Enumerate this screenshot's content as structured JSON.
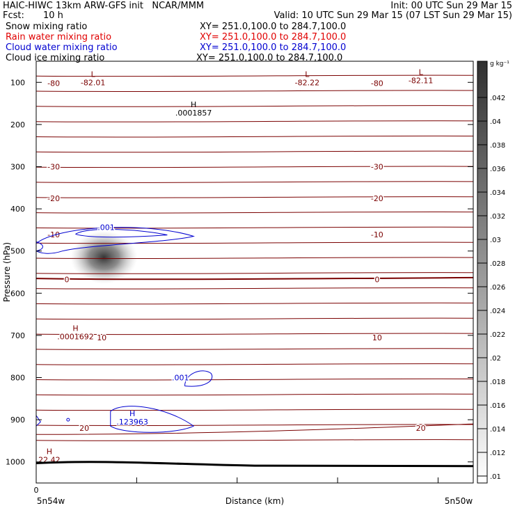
{
  "header": {
    "title_left": "HAIC-HIWC 13km ARW-GFS init   NCAR/MMM",
    "title_right": "Init: 00 UTC Sun 29 Mar 15",
    "fcst_label": "Fcst:",
    "fcst_value": "10 h",
    "valid": "Valid: 10 UTC Sun 29 Mar 15 (07 LST Sun 29 Mar 15)"
  },
  "fields": [
    {
      "name": "Snow mixing ratio",
      "xy": "XY= 251.0,100.0 to 284.7,100.0",
      "color": "#000000"
    },
    {
      "name": "Rain water mixing ratio",
      "xy": "XY= 251.0,100.0 to 284.7,100.0",
      "color": "#e00000"
    },
    {
      "name": "Cloud water mixing ratio",
      "xy": "XY= 251.0,100.0 to 284.7,100.0",
      "color": "#0000d0"
    },
    {
      "name": "Cloud ice mixing ratio",
      "xy": "XY= 251.0,100.0 to 284.7,100.0",
      "color": "#000000"
    }
  ],
  "chart_data": {
    "type": "cross-section",
    "xlabel": "Distance (km)",
    "ylabel": "Pressure (hPa)",
    "x_start_label": "5n54w",
    "x_end_label": "5n50w",
    "x_origin_tick": "0",
    "ylim": [
      1050,
      50
    ],
    "yticks": [
      100,
      200,
      300,
      400,
      500,
      600,
      700,
      800,
      900,
      1000
    ],
    "colorbar": {
      "unit": "g kg⁻¹",
      "ticks": [
        ".042",
        ".04",
        ".038",
        ".036",
        ".034",
        ".032",
        ".03",
        ".028",
        ".026",
        ".024",
        ".022",
        ".02",
        ".018",
        ".016",
        ".014",
        ".012",
        ".01"
      ]
    },
    "temperature_contours": [
      {
        "label": "-80",
        "p": 102
      },
      {
        "label": "-30",
        "p": 300
      },
      {
        "label": "-20",
        "p": 375
      },
      {
        "label": "-10",
        "p": 461
      },
      {
        "label": "0",
        "p": 567
      },
      {
        "label": "10",
        "p": 705
      },
      {
        "label": "20",
        "p": 920
      }
    ],
    "annotations": [
      {
        "kind": "L",
        "value": "-82.01",
        "x": 0.13,
        "p": 100
      },
      {
        "kind": "L",
        "value": "-82.22",
        "x": 0.62,
        "p": 100
      },
      {
        "kind": "L",
        "value": "-82.11",
        "x": 0.88,
        "p": 95
      },
      {
        "kind": "H",
        "value": ".0001857",
        "x": 0.36,
        "p": 172
      },
      {
        "kind": "H",
        "value": ".0001692",
        "x": 0.09,
        "p": 703
      },
      {
        "kind": "H",
        "value": ".123963",
        "x": 0.22,
        "p": 905
      },
      {
        "kind": "H",
        "value": "22.42",
        "x": 0.03,
        "p": 995
      }
    ],
    "cloud_water_labels": [
      {
        "value": ".001",
        "x": 0.16,
        "p": 450
      },
      {
        "value": ".001",
        "x": 0.33,
        "p": 807
      }
    ]
  }
}
